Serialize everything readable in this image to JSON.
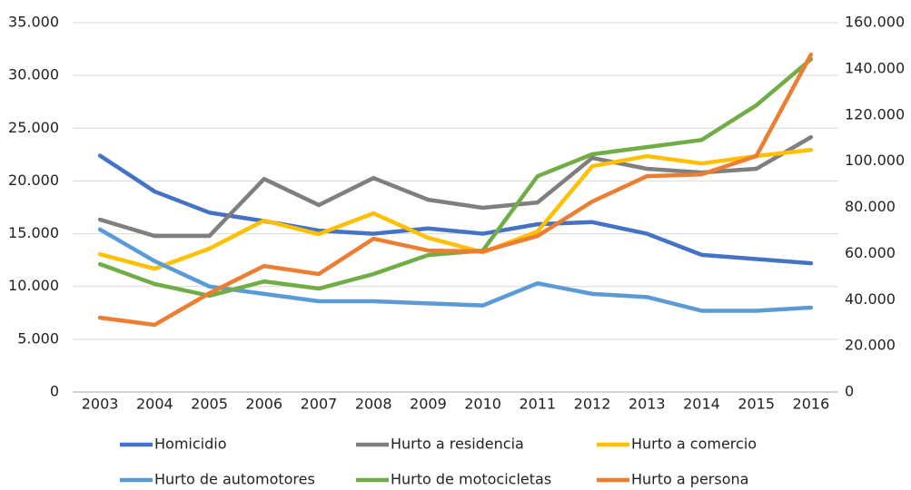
{
  "chart_data": {
    "type": "line",
    "categories": [
      "2003",
      "2004",
      "2005",
      "2006",
      "2007",
      "2008",
      "2009",
      "2010",
      "2011",
      "2012",
      "2013",
      "2014",
      "2015",
      "2016"
    ],
    "series": [
      {
        "name": "Homicidio",
        "color": "#4472c4",
        "values": [
          22400,
          19000,
          17000,
          16200,
          15300,
          15000,
          15500,
          15000,
          15900,
          16100,
          15000,
          13000,
          12600,
          12200
        ]
      },
      {
        "name": "Hurto a residencia",
        "color": "#7f7f7f",
        "axis": "y2",
        "values": [
          74700,
          67600,
          67600,
          92300,
          81000,
          92700,
          83300,
          79800,
          82100,
          101400,
          96700,
          95100,
          96700,
          110400
        ]
      },
      {
        "name": "Hurto a comercio",
        "color": "#ffc000",
        "axis": "y2",
        "values": [
          59700,
          53400,
          62100,
          74300,
          68400,
          77400,
          66800,
          60500,
          69500,
          97800,
          102200,
          99000,
          102200,
          104900
        ]
      },
      {
        "name": "Hurto de automotores",
        "color": "#5b9bd5",
        "values": [
          15400,
          12400,
          10000,
          9300,
          8600,
          8600,
          8400,
          8200,
          10300,
          9300,
          9000,
          7700,
          7700,
          8000
        ]
      },
      {
        "name": "Hurto de motocicletas",
        "color": "#70ad47",
        "axis": "y2",
        "values": [
          55400,
          46800,
          41700,
          47900,
          44800,
          51100,
          59300,
          61300,
          93500,
          103000,
          106100,
          109200,
          124200,
          144200
        ]
      },
      {
        "name": "Hurto a persona",
        "color": "#ed7d31",
        "axis": "y2",
        "values": [
          32200,
          29100,
          42800,
          54600,
          51100,
          66400,
          61300,
          60900,
          67600,
          82500,
          93500,
          94300,
          102200,
          146200
        ]
      }
    ],
    "ylim": [
      0,
      35000
    ],
    "yticks": [
      0,
      {
        "value": 5000,
        "label": "5.000"
      },
      {
        "value": 10000,
        "label": "10.000"
      },
      {
        "value": 15000,
        "label": "15.000"
      },
      {
        "value": 20000,
        "label": "20.000"
      },
      {
        "value": 25000,
        "label": "25.000"
      },
      {
        "value": 30000,
        "label": "30.000"
      },
      {
        "value": 35000,
        "label": "35.000"
      }
    ],
    "y2lim": [
      0,
      160000
    ],
    "y2ticks": [
      0,
      {
        "value": 20000,
        "label": "20.000"
      },
      {
        "value": 40000,
        "label": "40.000"
      },
      {
        "value": 60000,
        "label": "60.000"
      },
      {
        "value": 80000,
        "label": "80.000"
      },
      {
        "value": 100000,
        "label": "100.000"
      },
      {
        "value": 120000,
        "label": "120.000"
      },
      {
        "value": 140000,
        "label": "140.000"
      },
      {
        "value": 160000,
        "label": "160.000"
      }
    ],
    "grid": true,
    "legend": "bottom"
  }
}
